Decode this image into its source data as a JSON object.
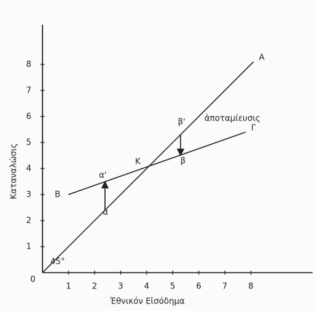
{
  "chart_data": {
    "type": "line",
    "xlabel": "Έθνικόν Εἰσόδημα",
    "ylabel": "Καταναλώσις",
    "origin_label": "0",
    "xlim": [
      0,
      10.3
    ],
    "ylim": [
      0,
      9.4
    ],
    "xticks": [
      1,
      2,
      3,
      4,
      5,
      6,
      7,
      8
    ],
    "yticks": [
      1,
      2,
      3,
      4,
      5,
      6,
      7,
      8
    ],
    "series": [
      {
        "name": "A",
        "color": "#222222",
        "x": [
          0,
          8.1
        ],
        "values": [
          0,
          8.1
        ]
      },
      {
        "name": "Γ",
        "color": "#222222",
        "x": [
          1,
          7.8
        ],
        "values": [
          3,
          5.4
        ]
      }
    ],
    "arrows": [
      {
        "x": 2.4,
        "from": 2.4,
        "to": 3.5
      },
      {
        "x": 5.3,
        "from": 5.3,
        "to": 4.5
      }
    ],
    "annotations": [
      "B",
      "K",
      "α",
      "α'",
      "β",
      "β'",
      "ἀποταμίευσις",
      "45°"
    ]
  }
}
